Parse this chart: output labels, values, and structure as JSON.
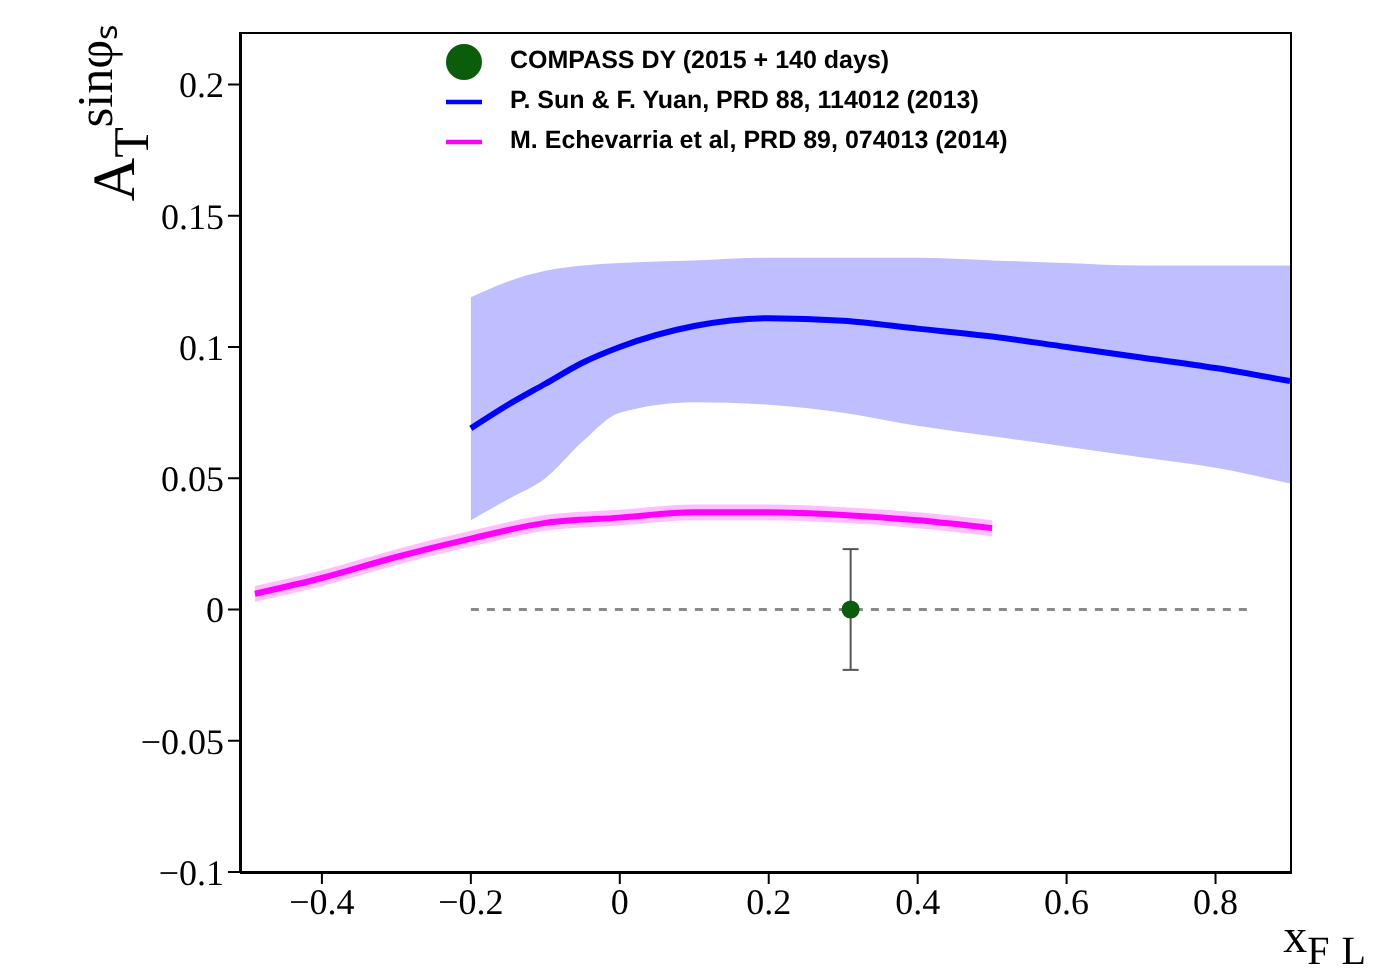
{
  "chart_data": {
    "type": "line",
    "xlabel": "x$_{F}$ $_{L}$",
    "ylabel": "A$_{T}$$^{sinφₛ}$",
    "xlim": [
      -0.51,
      0.9
    ],
    "ylim": [
      -0.1,
      0.22
    ],
    "xticks": [
      -0.4,
      -0.2,
      0,
      0.2,
      0.4,
      0.6,
      0.8
    ],
    "yticks": [
      -0.1,
      -0.05,
      0,
      0.05,
      0.1,
      0.15,
      0.2
    ],
    "grid": false,
    "legend": "top",
    "series": [
      {
        "name": "COMPASS DY (2015 + 140 days)",
        "type": "scatter",
        "marker": "circle",
        "color": "#0b5c0b",
        "x": [
          0.31
        ],
        "values": [
          0
        ],
        "errors": [
          0.023
        ]
      },
      {
        "name": "P. Sun & F. Yuan, PRD 88, 114012 (2013)",
        "color": "#0000ff",
        "x": [
          -0.2,
          -0.15,
          -0.1,
          -0.05,
          0,
          0.1,
          0.2,
          0.3,
          0.4,
          0.5,
          0.6,
          0.7,
          0.8,
          0.9
        ],
        "values": [
          0.069,
          0.078,
          0.086,
          0.094,
          0.1,
          0.108,
          0.111,
          0.11,
          0.107,
          0.104,
          0.1,
          0.096,
          0.092,
          0.087
        ],
        "lower": [
          0.034,
          0.042,
          0.05,
          0.064,
          0.075,
          0.079,
          0.078,
          0.075,
          0.07,
          0.066,
          0.062,
          0.058,
          0.054,
          0.048
        ],
        "upper": [
          0.119,
          0.125,
          0.129,
          0.131,
          0.132,
          0.133,
          0.134,
          0.134,
          0.134,
          0.133,
          0.132,
          0.131,
          0.131,
          0.131
        ]
      },
      {
        "name": "M. Echevarria et al, PRD 89, 074013 (2014)",
        "color": "#ff00ff",
        "x": [
          -0.49,
          -0.4,
          -0.3,
          -0.2,
          -0.1,
          0,
          0.1,
          0.2,
          0.3,
          0.4,
          0.5
        ],
        "values": [
          0.006,
          0.012,
          0.02,
          0.027,
          0.033,
          0.035,
          0.037,
          0.037,
          0.036,
          0.034,
          0.031
        ],
        "lower": [
          0.003,
          0.009,
          0.017,
          0.024,
          0.03,
          0.032,
          0.034,
          0.034,
          0.033,
          0.031,
          0.028
        ],
        "upper": [
          0.009,
          0.015,
          0.023,
          0.03,
          0.036,
          0.038,
          0.04,
          0.04,
          0.039,
          0.037,
          0.034
        ]
      },
      {
        "line_style": "dashed",
        "color": "#888888",
        "x": [
          -0.2,
          0.85
        ],
        "values": [
          0,
          0
        ]
      }
    ]
  }
}
